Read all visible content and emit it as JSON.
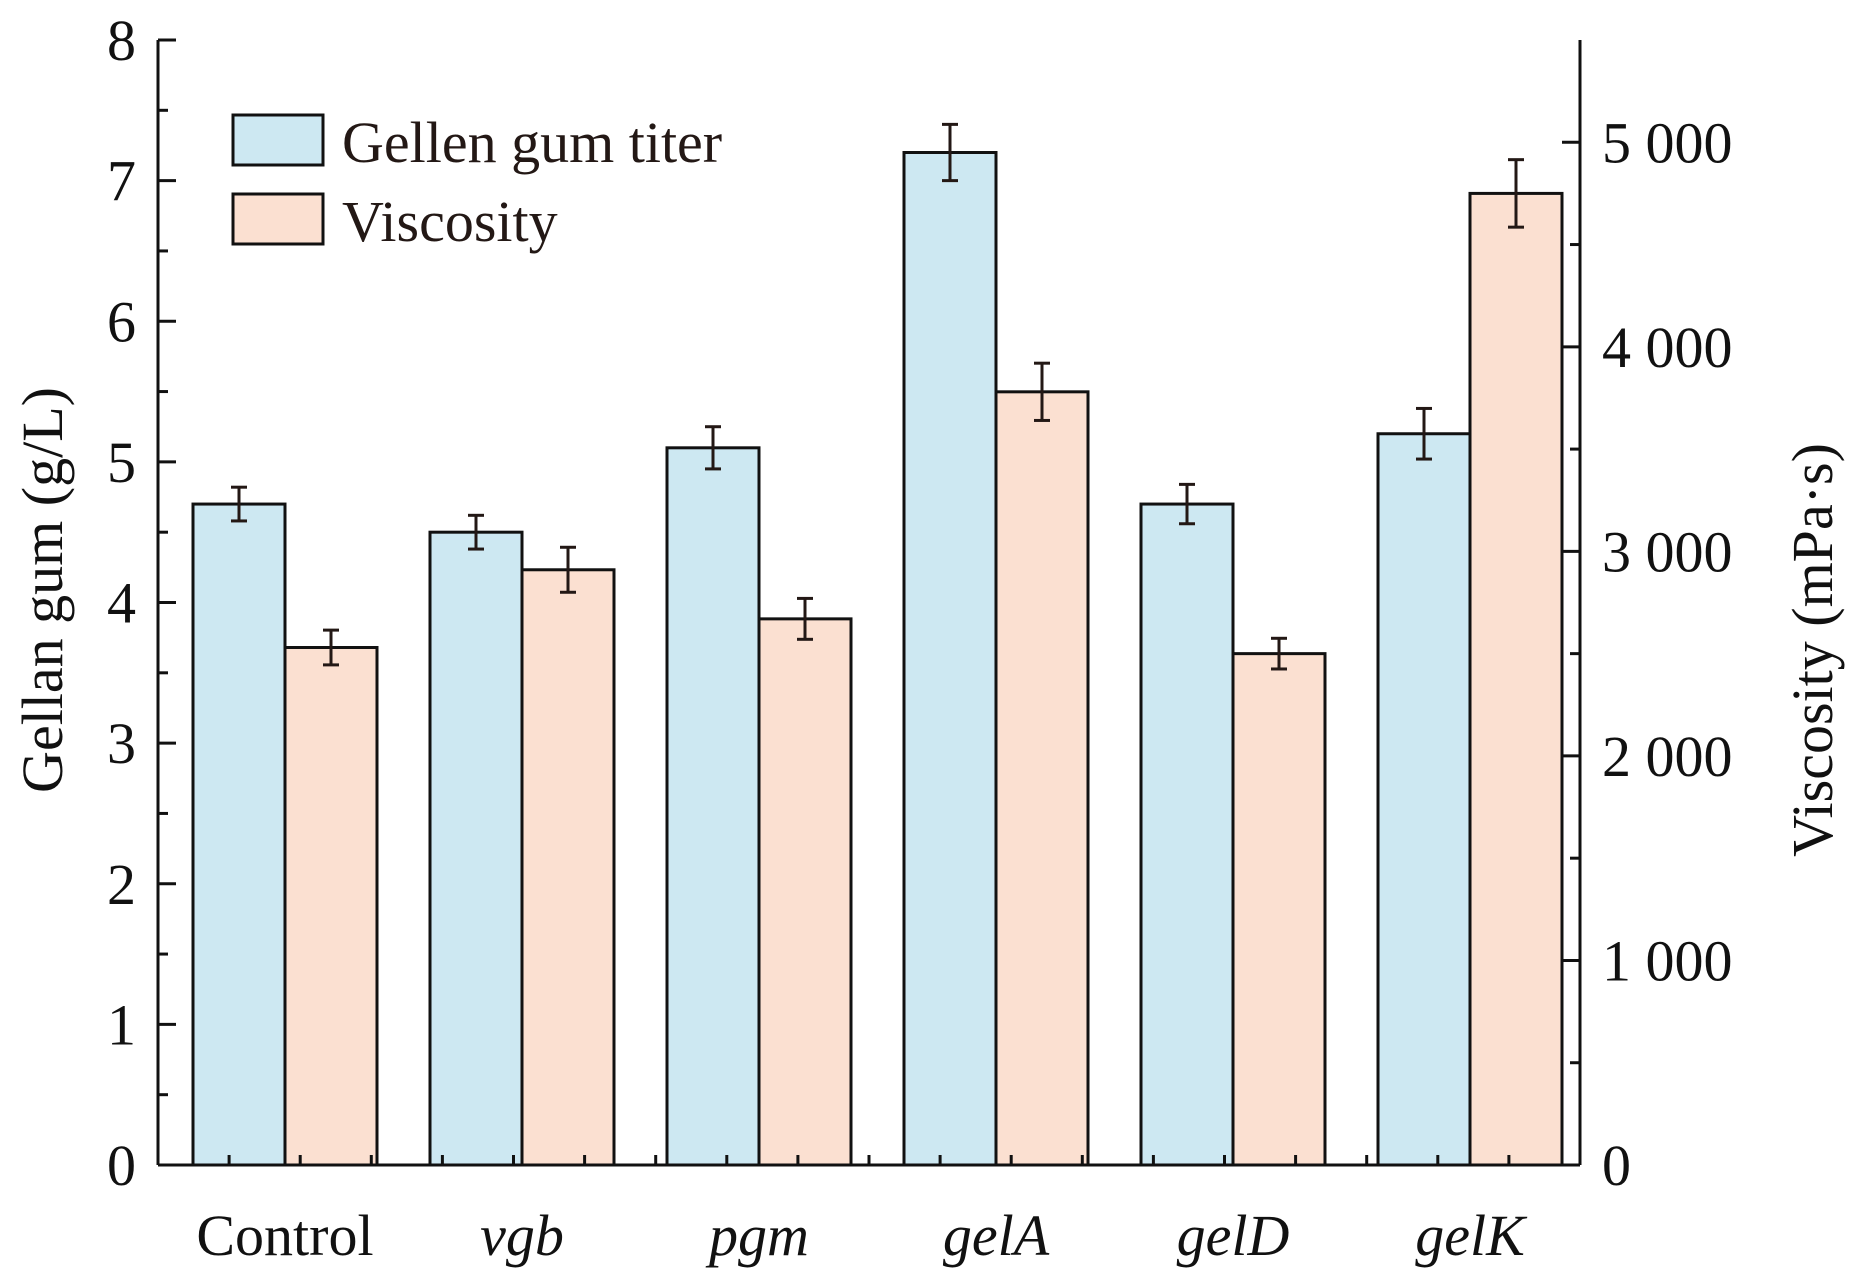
{
  "chart_data": {
    "type": "bar",
    "categories": [
      "Control",
      "vgb",
      "pgm",
      "gelA",
      "gelD",
      "gelK"
    ],
    "italic_categories": [
      "vgb",
      "pgm",
      "gelA",
      "gelD",
      "gelK"
    ],
    "y_left": {
      "label": "Gellan gum (g/L)",
      "lim": [
        0,
        8
      ],
      "ticks": [
        0,
        1,
        2,
        3,
        4,
        5,
        6,
        7,
        8
      ],
      "tick_labels": [
        "0",
        "1",
        "2",
        "3",
        "4",
        "5",
        "6",
        "7",
        "8"
      ]
    },
    "y_right": {
      "label": "Viscosity (mPa·s)",
      "lim": [
        0,
        5500
      ],
      "ticks": [
        0,
        1000,
        2000,
        3000,
        4000,
        5000
      ],
      "tick_labels": [
        "0",
        "1 000",
        "2 000",
        "3 000",
        "4 000",
        "5 000"
      ]
    },
    "series": [
      {
        "name": "Gellen gum titer",
        "axis": "left",
        "color": "#cde8f2",
        "values": [
          4.7,
          4.5,
          5.1,
          7.2,
          4.7,
          5.2
        ],
        "errors": [
          0.12,
          0.12,
          0.15,
          0.2,
          0.14,
          0.18
        ]
      },
      {
        "name": "Viscosity",
        "axis": "right",
        "color": "#fbe0d1",
        "values": [
          2530,
          2910,
          2670,
          3780,
          2500,
          4750
        ],
        "errors": [
          85,
          110,
          100,
          140,
          75,
          165
        ]
      }
    ],
    "legend_position": "top-left",
    "grid": false
  }
}
